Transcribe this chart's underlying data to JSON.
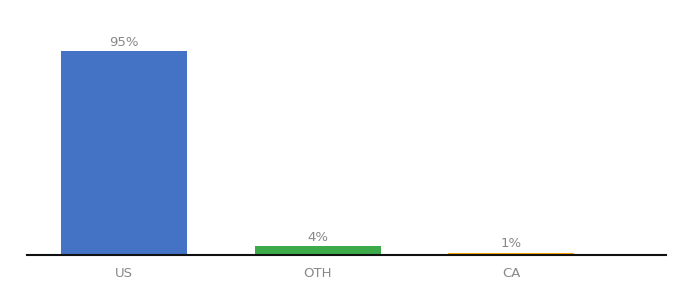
{
  "categories": [
    "US",
    "OTH",
    "CA"
  ],
  "values": [
    95,
    4,
    1
  ],
  "bar_colors": [
    "#4472C4",
    "#3DAA4A",
    "#FFA500"
  ],
  "value_labels": [
    "95%",
    "4%",
    "1%"
  ],
  "ylim": [
    0,
    105
  ],
  "background_color": "#ffffff",
  "label_fontsize": 9.5,
  "tick_fontsize": 9.5,
  "bar_width": 0.65,
  "tick_color": "#888888",
  "label_color": "#888888"
}
